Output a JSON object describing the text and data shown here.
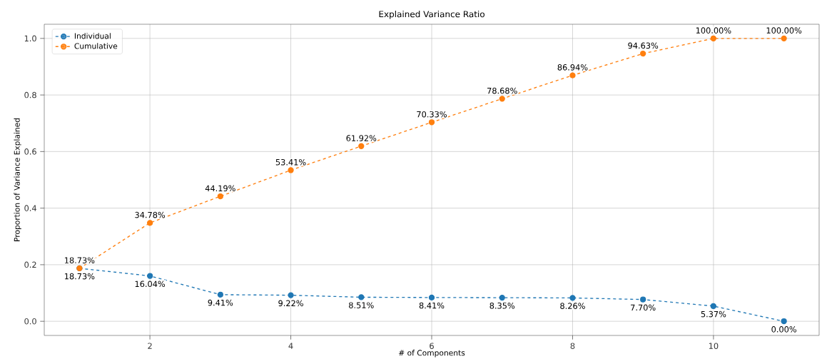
{
  "chart_data": {
    "type": "line",
    "title": "Explained Variance Ratio",
    "xlabel": "# of Components",
    "ylabel": "Proportion of Variance Explained",
    "x": [
      1,
      2,
      3,
      4,
      5,
      6,
      7,
      8,
      9,
      10,
      11
    ],
    "series": [
      {
        "name": "Individual",
        "color": "#1f77b4",
        "values": [
          0.1873,
          0.1604,
          0.0941,
          0.0922,
          0.0851,
          0.0841,
          0.0835,
          0.0826,
          0.077,
          0.0537,
          0.0
        ],
        "value_labels": [
          "18.73%",
          "16.04%",
          "9.41%",
          "9.22%",
          "8.51%",
          "8.41%",
          "8.35%",
          "8.26%",
          "7.70%",
          "5.37%",
          "0.00%"
        ]
      },
      {
        "name": "Cumulative",
        "color": "#ff7f0e",
        "values": [
          0.1873,
          0.3478,
          0.4419,
          0.5341,
          0.6192,
          0.7033,
          0.7868,
          0.8694,
          0.9463,
          1.0,
          1.0
        ],
        "value_labels": [
          "18.73%",
          "34.78%",
          "44.19%",
          "53.41%",
          "61.92%",
          "70.33%",
          "78.68%",
          "86.94%",
          "94.63%",
          "100.00%",
          "100.00%"
        ]
      }
    ],
    "xlim": [
      0.5,
      11.5
    ],
    "ylim": [
      -0.05,
      1.05
    ],
    "xticks": [
      2,
      4,
      6,
      8,
      10
    ],
    "yticks": [
      {
        "value": 0,
        "label": "0.0"
      },
      0.2,
      0.4,
      0.6,
      0.8,
      {
        "value": 1,
        "label": "1.0"
      }
    ],
    "grid": true,
    "legend": "top left",
    "marker": "circle",
    "line_style": "dashed"
  }
}
